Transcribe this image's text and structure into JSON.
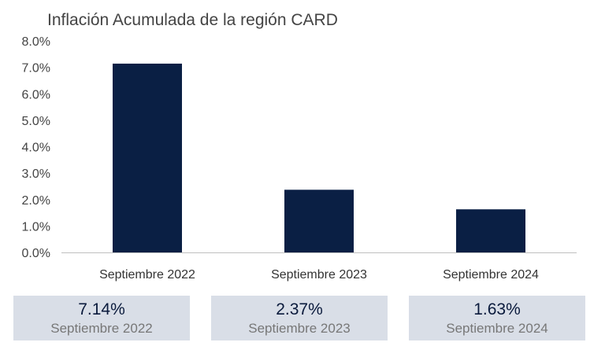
{
  "chart_data": {
    "type": "bar",
    "title": "Inflación Acumulada de la región CARD",
    "categories": [
      "Septiembre 2022",
      "Septiembre 2023",
      "Septiembre 2024"
    ],
    "values": [
      7.14,
      2.37,
      1.63
    ],
    "ylim": [
      0,
      8
    ],
    "yticks": [
      "0.0%",
      "1.0%",
      "2.0%",
      "3.0%",
      "4.0%",
      "5.0%",
      "6.0%",
      "7.0%",
      "8.0%"
    ],
    "ytick_values": [
      0,
      1,
      2,
      3,
      4,
      5,
      6,
      7,
      8
    ],
    "bar_color": "#0a1f44",
    "grid": false,
    "legend": "none"
  },
  "summary": [
    {
      "value": "7.14%",
      "label": "Septiembre 2022"
    },
    {
      "value": "2.37%",
      "label": "Septiembre 2023"
    },
    {
      "value": "1.63%",
      "label": "Septiembre 2024"
    }
  ],
  "colors": {
    "box_background": "#d9dee7",
    "value_text": "#0a1a3c",
    "label_text": "#777777"
  }
}
